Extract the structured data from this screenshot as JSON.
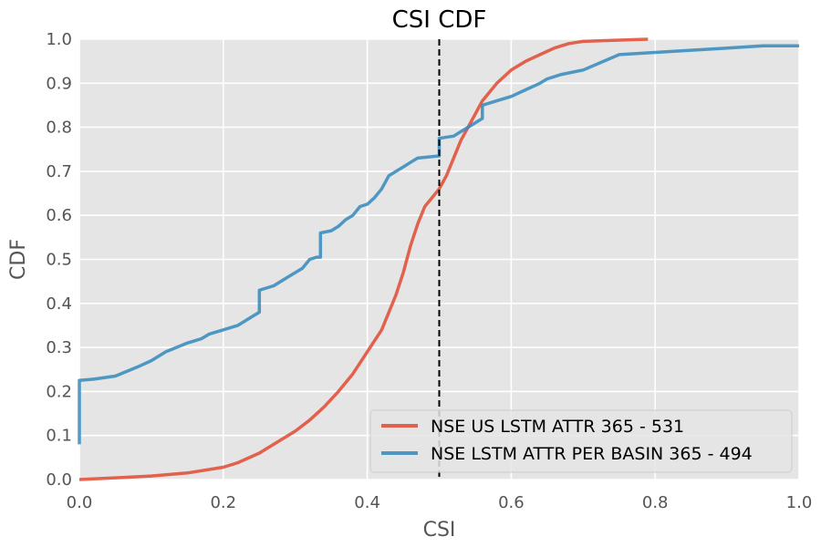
{
  "chart_data": {
    "type": "line",
    "title": "CSI CDF",
    "xlabel": "CSI",
    "ylabel": "CDF",
    "xlim": [
      0,
      1
    ],
    "ylim": [
      0,
      1
    ],
    "xticks": [
      "0.0",
      "0.2",
      "0.4",
      "0.6",
      "0.8",
      "1.0"
    ],
    "yticks": [
      "0.0",
      "0.1",
      "0.2",
      "0.3",
      "0.4",
      "0.5",
      "0.6",
      "0.7",
      "0.8",
      "0.9",
      "1.0"
    ],
    "grid": true,
    "legend_position": "lower-right",
    "vline": {
      "x": 0.5,
      "style": "dashed",
      "color": "#000000"
    },
    "series": [
      {
        "name": "NSE US LSTM ATTR 365 - 531",
        "color": "#E24A33",
        "points": [
          [
            0.0,
            0.0
          ],
          [
            0.05,
            0.004
          ],
          [
            0.1,
            0.008
          ],
          [
            0.15,
            0.015
          ],
          [
            0.2,
            0.028
          ],
          [
            0.22,
            0.038
          ],
          [
            0.25,
            0.06
          ],
          [
            0.28,
            0.09
          ],
          [
            0.3,
            0.11
          ],
          [
            0.32,
            0.135
          ],
          [
            0.34,
            0.165
          ],
          [
            0.36,
            0.2
          ],
          [
            0.38,
            0.24
          ],
          [
            0.4,
            0.29
          ],
          [
            0.42,
            0.34
          ],
          [
            0.43,
            0.38
          ],
          [
            0.44,
            0.42
          ],
          [
            0.45,
            0.47
          ],
          [
            0.46,
            0.53
          ],
          [
            0.47,
            0.58
          ],
          [
            0.48,
            0.62
          ],
          [
            0.49,
            0.64
          ],
          [
            0.5,
            0.66
          ],
          [
            0.51,
            0.69
          ],
          [
            0.52,
            0.73
          ],
          [
            0.53,
            0.77
          ],
          [
            0.54,
            0.8
          ],
          [
            0.55,
            0.83
          ],
          [
            0.56,
            0.86
          ],
          [
            0.57,
            0.88
          ],
          [
            0.58,
            0.9
          ],
          [
            0.6,
            0.93
          ],
          [
            0.62,
            0.95
          ],
          [
            0.64,
            0.965
          ],
          [
            0.66,
            0.98
          ],
          [
            0.68,
            0.99
          ],
          [
            0.7,
            0.995
          ],
          [
            0.75,
            0.998
          ],
          [
            0.79,
            1.0
          ]
        ]
      },
      {
        "name": "NSE LSTM ATTR PER BASIN 365 - 494",
        "color": "#348ABD",
        "points": [
          [
            0.0,
            0.08
          ],
          [
            0.0,
            0.225
          ],
          [
            0.02,
            0.228
          ],
          [
            0.05,
            0.235
          ],
          [
            0.08,
            0.255
          ],
          [
            0.1,
            0.27
          ],
          [
            0.12,
            0.29
          ],
          [
            0.15,
            0.31
          ],
          [
            0.17,
            0.32
          ],
          [
            0.18,
            0.33
          ],
          [
            0.2,
            0.34
          ],
          [
            0.22,
            0.35
          ],
          [
            0.24,
            0.37
          ],
          [
            0.25,
            0.38
          ],
          [
            0.25,
            0.43
          ],
          [
            0.27,
            0.44
          ],
          [
            0.29,
            0.46
          ],
          [
            0.3,
            0.47
          ],
          [
            0.31,
            0.48
          ],
          [
            0.32,
            0.5
          ],
          [
            0.33,
            0.505
          ],
          [
            0.335,
            0.505
          ],
          [
            0.335,
            0.56
          ],
          [
            0.35,
            0.565
          ],
          [
            0.36,
            0.575
          ],
          [
            0.37,
            0.59
          ],
          [
            0.38,
            0.6
          ],
          [
            0.39,
            0.62
          ],
          [
            0.4,
            0.625
          ],
          [
            0.41,
            0.64
          ],
          [
            0.42,
            0.66
          ],
          [
            0.43,
            0.69
          ],
          [
            0.44,
            0.7
          ],
          [
            0.45,
            0.71
          ],
          [
            0.46,
            0.72
          ],
          [
            0.47,
            0.73
          ],
          [
            0.5,
            0.735
          ],
          [
            0.5,
            0.775
          ],
          [
            0.52,
            0.78
          ],
          [
            0.53,
            0.79
          ],
          [
            0.54,
            0.8
          ],
          [
            0.55,
            0.81
          ],
          [
            0.56,
            0.82
          ],
          [
            0.56,
            0.85
          ],
          [
            0.58,
            0.86
          ],
          [
            0.6,
            0.87
          ],
          [
            0.62,
            0.885
          ],
          [
            0.64,
            0.9
          ],
          [
            0.65,
            0.91
          ],
          [
            0.67,
            0.92
          ],
          [
            0.7,
            0.93
          ],
          [
            0.75,
            0.965
          ],
          [
            0.8,
            0.97
          ],
          [
            0.85,
            0.975
          ],
          [
            0.9,
            0.98
          ],
          [
            0.95,
            0.985
          ],
          [
            1.0,
            0.985
          ]
        ]
      }
    ]
  }
}
